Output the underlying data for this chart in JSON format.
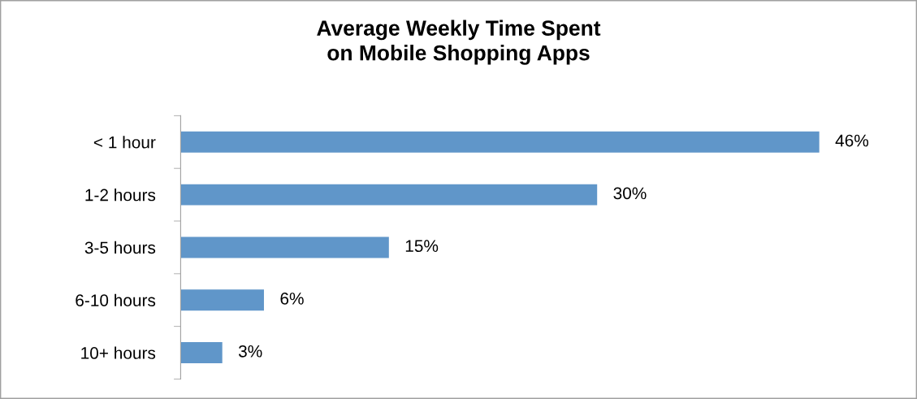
{
  "chart_data": {
    "type": "bar",
    "orientation": "horizontal",
    "title": "Average Weekly Time Spent\non Mobile Shopping Apps",
    "categories": [
      "< 1 hour",
      "1-2 hours",
      "3-5 hours",
      "6-10 hours",
      "10+ hours"
    ],
    "values": [
      46,
      30,
      15,
      6,
      3
    ],
    "value_labels": [
      "46%",
      "30%",
      "15%",
      "6%",
      "3%"
    ],
    "color": "#6096c9",
    "grid": false,
    "legend": false
  }
}
